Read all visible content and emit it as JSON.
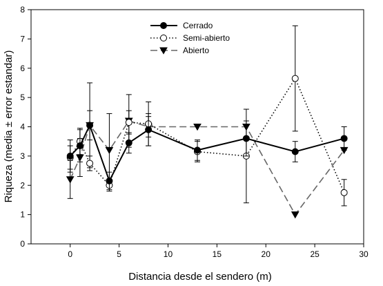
{
  "chart_data": {
    "type": "line",
    "title": "",
    "xlabel": "Distancia desde el sendero (m)",
    "ylabel": "Riqueza (media ± error estandar)",
    "xlim": [
      -4,
      30
    ],
    "ylim": [
      0,
      8
    ],
    "xticks": [
      0,
      5,
      10,
      15,
      20,
      25,
      30
    ],
    "yticks": [
      0,
      1,
      2,
      3,
      4,
      5,
      6,
      7,
      8
    ],
    "grid": false,
    "legend_position": "top-center",
    "series": [
      {
        "name": "Cerrado",
        "marker": "filled-circle",
        "line_style": "solid",
        "color": "#000000",
        "x": [
          0,
          1,
          2,
          4,
          6,
          8,
          13,
          18,
          23,
          28
        ],
        "y": [
          3.0,
          3.35,
          4.05,
          2.15,
          3.45,
          3.9,
          3.2,
          3.6,
          3.15,
          3.6
        ],
        "err": [
          0.55,
          0.55,
          0.5,
          0.3,
          0.35,
          0.55,
          0.35,
          0.6,
          0.35,
          0.4
        ]
      },
      {
        "name": "Semi-abierto",
        "marker": "open-circle",
        "line_style": "dotted",
        "color": "#000000",
        "x": [
          0,
          1,
          2,
          4,
          6,
          8,
          13,
          18,
          23,
          28
        ],
        "y": [
          2.95,
          3.5,
          2.75,
          2.0,
          4.15,
          4.1,
          3.15,
          3.0,
          5.65,
          1.75
        ],
        "err": [
          0.4,
          0.45,
          0.25,
          0.2,
          0.4,
          0.75,
          0.35,
          1.6,
          1.8,
          0.45
        ]
      },
      {
        "name": "Abierto",
        "marker": "filled-triangle-down",
        "line_style": "dashed",
        "color": "#666666",
        "x": [
          0,
          1,
          2,
          4,
          6,
          8,
          13,
          18,
          23,
          28
        ],
        "y": [
          2.2,
          2.95,
          4.05,
          3.2,
          4.2,
          4.0,
          4.0,
          4.0,
          1.0,
          3.2
        ],
        "err": [
          0.65,
          0.65,
          1.45,
          1.25,
          0.9,
          0.35,
          0,
          0,
          0,
          0
        ]
      }
    ]
  }
}
